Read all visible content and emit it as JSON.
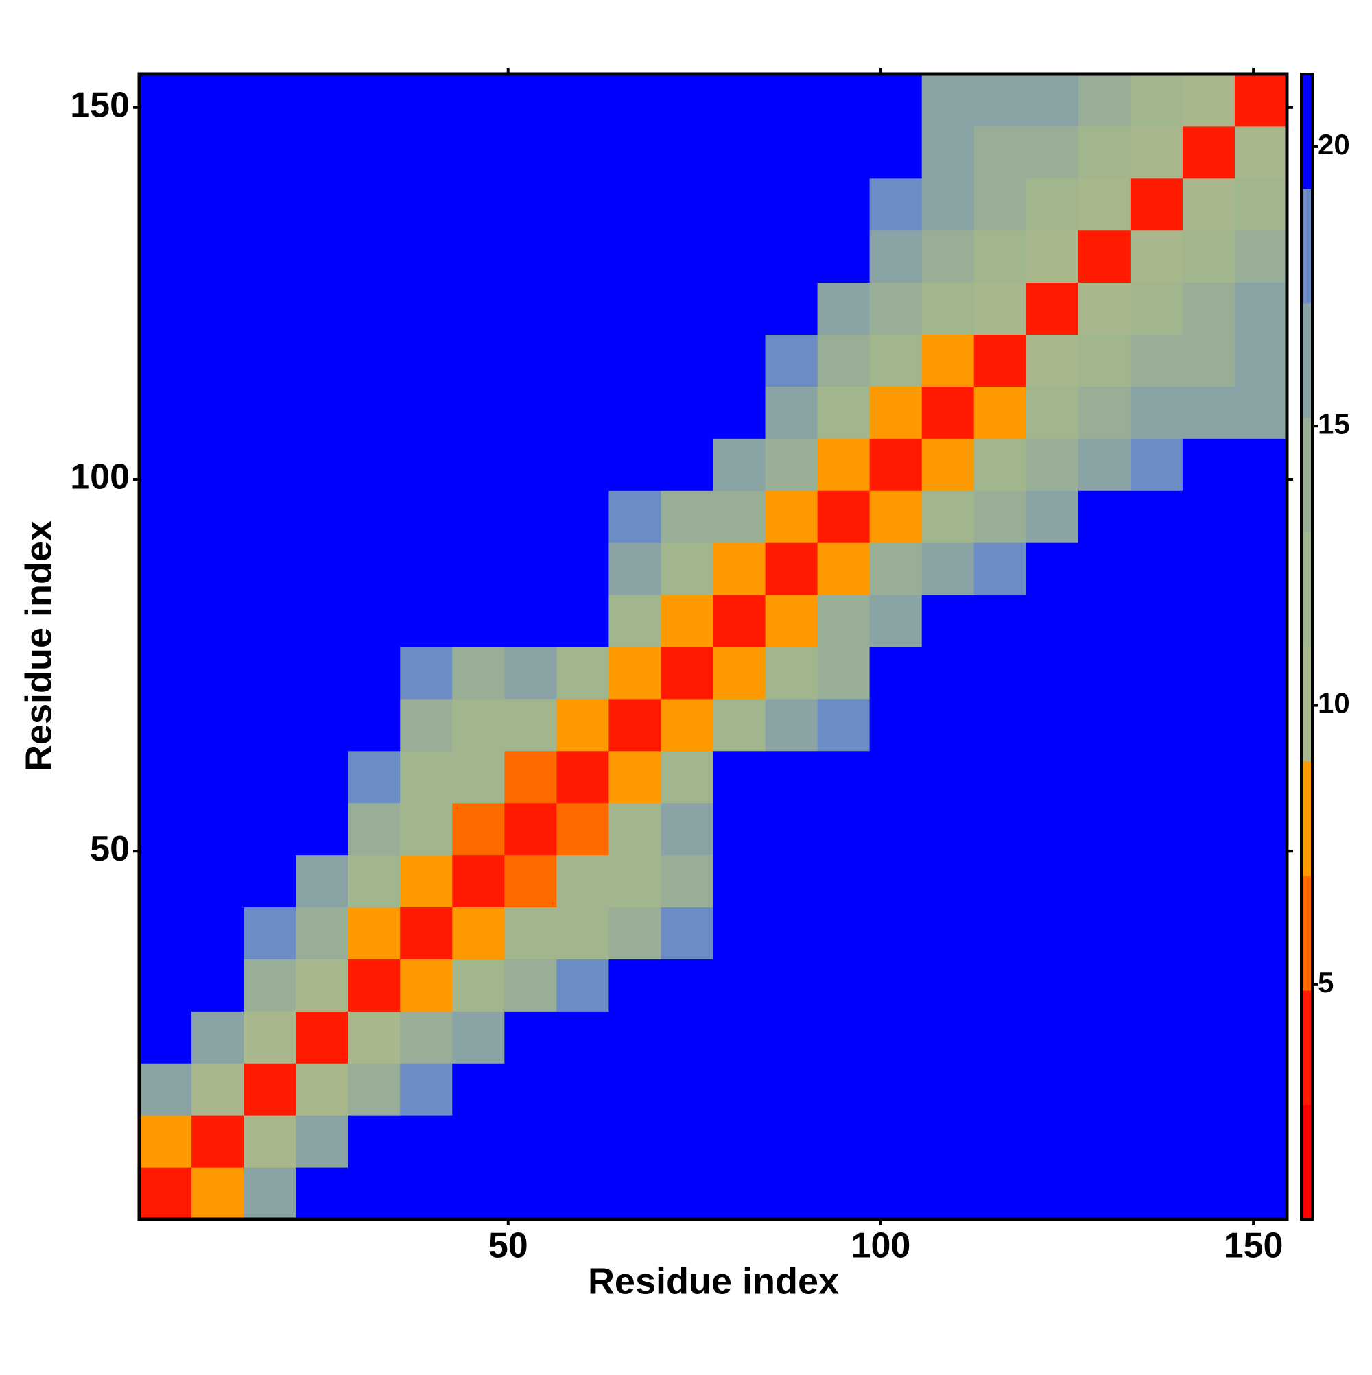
{
  "chart_data": {
    "type": "heatmap",
    "xlabel": "Residue index",
    "ylabel": "Residue index",
    "x": [
      4,
      11,
      18,
      25,
      32,
      39,
      46,
      53,
      60,
      67,
      74,
      81,
      88,
      95,
      102,
      109,
      116,
      123,
      130,
      137,
      144,
      151
    ],
    "y": [
      4,
      11,
      18,
      25,
      32,
      39,
      46,
      53,
      60,
      67,
      74,
      81,
      88,
      95,
      102,
      109,
      116,
      123,
      130,
      137,
      144,
      151
    ],
    "z": [
      [
        3,
        8,
        17,
        22,
        22,
        22,
        22,
        22,
        22,
        22,
        22,
        22,
        22,
        22,
        22,
        22,
        22,
        22,
        22,
        22,
        22,
        22
      ],
      [
        8,
        3,
        9,
        16,
        22,
        22,
        22,
        22,
        22,
        22,
        22,
        22,
        22,
        22,
        22,
        22,
        22,
        22,
        22,
        22,
        22,
        22
      ],
      [
        17,
        9,
        3,
        9,
        15,
        18,
        22,
        22,
        22,
        22,
        22,
        22,
        22,
        22,
        22,
        22,
        22,
        22,
        22,
        22,
        22,
        22
      ],
      [
        22,
        16,
        9,
        3,
        9,
        14,
        17,
        22,
        22,
        22,
        22,
        22,
        22,
        22,
        22,
        22,
        22,
        22,
        22,
        22,
        22,
        22
      ],
      [
        22,
        22,
        15,
        9,
        3,
        8,
        13,
        15,
        19,
        22,
        22,
        22,
        22,
        22,
        22,
        22,
        22,
        22,
        22,
        22,
        22,
        22
      ],
      [
        22,
        22,
        18,
        14,
        8,
        3,
        7,
        12,
        13,
        14,
        18,
        22,
        22,
        22,
        22,
        22,
        22,
        22,
        22,
        22,
        22,
        22
      ],
      [
        22,
        22,
        22,
        17,
        13,
        7,
        3,
        6,
        12,
        13,
        15,
        22,
        22,
        22,
        22,
        22,
        22,
        22,
        22,
        22,
        22,
        22
      ],
      [
        22,
        22,
        22,
        22,
        15,
        12,
        6,
        3,
        6,
        12,
        16,
        22,
        22,
        22,
        22,
        22,
        22,
        22,
        22,
        22,
        22,
        22
      ],
      [
        22,
        22,
        22,
        22,
        19,
        13,
        12,
        6,
        3,
        7,
        13,
        22,
        22,
        22,
        22,
        22,
        22,
        22,
        22,
        22,
        22,
        22
      ],
      [
        22,
        22,
        22,
        22,
        22,
        14,
        13,
        12,
        7,
        3,
        7,
        13,
        16,
        18,
        22,
        22,
        22,
        22,
        22,
        22,
        22,
        22
      ],
      [
        22,
        22,
        22,
        22,
        22,
        18,
        15,
        16,
        13,
        7,
        3,
        8,
        13,
        15,
        22,
        22,
        22,
        22,
        22,
        22,
        22,
        22
      ],
      [
        22,
        22,
        22,
        22,
        22,
        22,
        22,
        22,
        22,
        13,
        8,
        3,
        8,
        14,
        17,
        22,
        22,
        22,
        22,
        22,
        22,
        22
      ],
      [
        22,
        22,
        22,
        22,
        22,
        22,
        22,
        22,
        22,
        16,
        13,
        8,
        3,
        8,
        14,
        16,
        18,
        22,
        22,
        22,
        22,
        22
      ],
      [
        22,
        22,
        22,
        22,
        22,
        22,
        22,
        22,
        22,
        18,
        15,
        14,
        8,
        3,
        8,
        13,
        15,
        17,
        22,
        22,
        22,
        22
      ],
      [
        22,
        22,
        22,
        22,
        22,
        22,
        22,
        22,
        22,
        22,
        22,
        17,
        14,
        8,
        3,
        7,
        13,
        15,
        16,
        18,
        22,
        22
      ],
      [
        22,
        22,
        22,
        22,
        22,
        22,
        22,
        22,
        22,
        22,
        22,
        22,
        16,
        13,
        7,
        3,
        8,
        13,
        14,
        17,
        16,
        17
      ],
      [
        22,
        22,
        22,
        22,
        22,
        22,
        22,
        22,
        22,
        22,
        22,
        22,
        18,
        15,
        13,
        8,
        3,
        9,
        12,
        14,
        15,
        16
      ],
      [
        22,
        22,
        22,
        22,
        22,
        22,
        22,
        22,
        22,
        22,
        22,
        22,
        22,
        17,
        15,
        13,
        9,
        3,
        9,
        12,
        14,
        16
      ],
      [
        22,
        22,
        22,
        22,
        22,
        22,
        22,
        22,
        22,
        22,
        22,
        22,
        22,
        22,
        16,
        14,
        12,
        9,
        3,
        9,
        12,
        15
      ],
      [
        22,
        22,
        22,
        22,
        22,
        22,
        22,
        22,
        22,
        22,
        22,
        22,
        22,
        22,
        18,
        17,
        14,
        12,
        9,
        3,
        9,
        13
      ],
      [
        22,
        22,
        22,
        22,
        22,
        22,
        22,
        22,
        22,
        22,
        22,
        22,
        22,
        22,
        22,
        16,
        15,
        14,
        12,
        9,
        3,
        9
      ],
      [
        22,
        22,
        22,
        22,
        22,
        22,
        22,
        22,
        22,
        22,
        22,
        22,
        22,
        22,
        22,
        17,
        16,
        16,
        15,
        13,
        9,
        3
      ]
    ],
    "xlim": [
      0.5,
      154.5
    ],
    "ylim": [
      0.5,
      154.5
    ],
    "xticks": [
      50,
      100,
      150
    ],
    "yticks": [
      50,
      100,
      150
    ],
    "clim": [
      0.8,
      21.3
    ],
    "cticks": [
      5,
      10,
      15,
      20
    ],
    "colormap": [
      "#ff0000",
      "#ff1a00",
      "#ff6a00",
      "#ff9900",
      "#a8b88c",
      "#a2b68e",
      "#98ae96",
      "#8aa4a6",
      "#6b8cc4",
      "#0000ff"
    ]
  }
}
